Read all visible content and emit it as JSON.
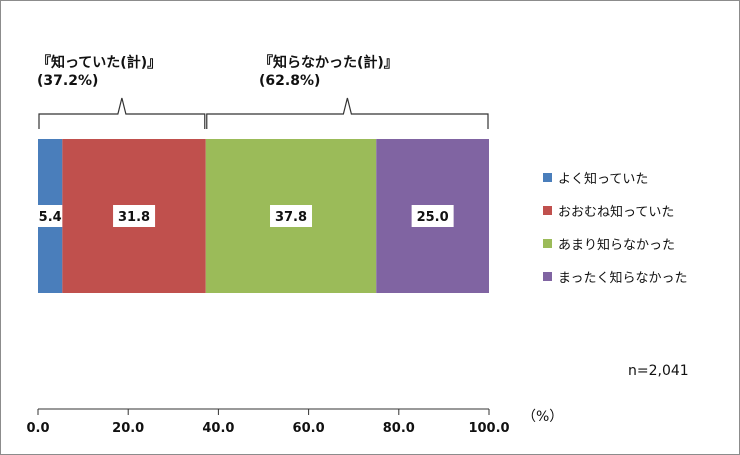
{
  "chart_data": {
    "type": "bar",
    "orientation": "horizontal",
    "stacked": true,
    "series": [
      {
        "name": "よく知っていた",
        "value": 5.4,
        "color": "#4a7ebb"
      },
      {
        "name": "おおむね知っていた",
        "value": 31.8,
        "color": "#c0504d"
      },
      {
        "name": "あまり知らなかった",
        "value": 37.8,
        "color": "#9bbb59"
      },
      {
        "name": "まったく知らなかった",
        "value": 25.0,
        "color": "#8064a2"
      }
    ],
    "data_labels": [
      "5.4",
      "31.8",
      "37.8",
      "25.0"
    ],
    "xlim": [
      0,
      100
    ],
    "x_ticks": [
      "0.0",
      "20.0",
      "40.0",
      "60.0",
      "80.0",
      "100.0"
    ],
    "x_unit": "（%）",
    "grid": false,
    "legend_position": "right",
    "groups": [
      {
        "title": "『知っていた(計)』",
        "value": "(37.2%)",
        "from": 0,
        "to": 37.2
      },
      {
        "title": "『知らなかった(計)』",
        "value": "(62.8%)",
        "from": 37.2,
        "to": 100
      }
    ],
    "note": "n=2,041"
  }
}
